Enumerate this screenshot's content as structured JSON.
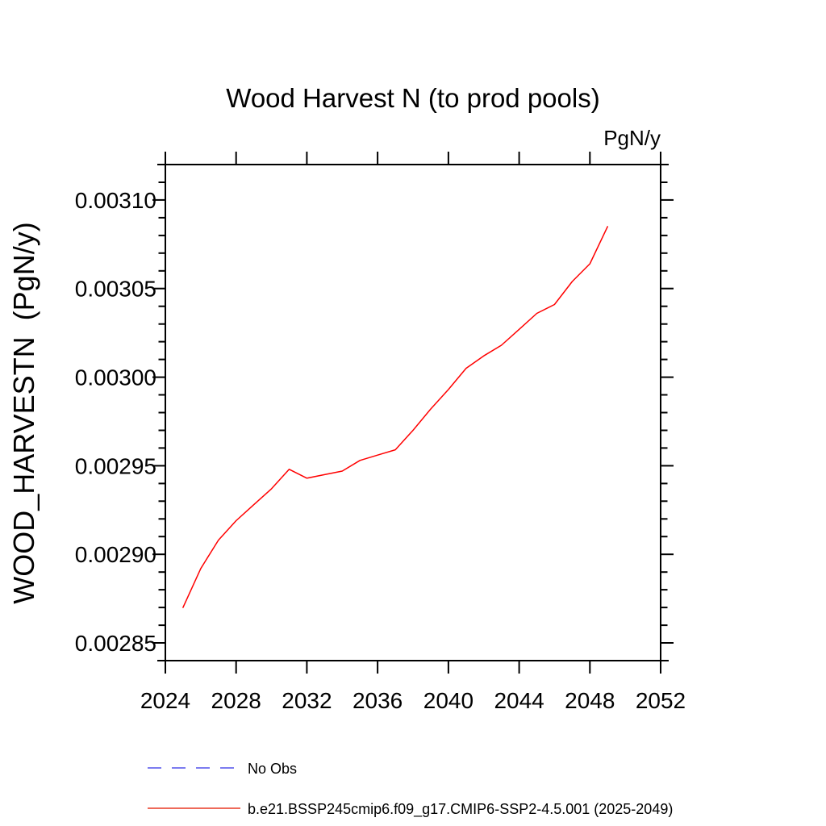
{
  "page": {
    "background": "#ffffff",
    "text_color": "#000000"
  },
  "chart_data": {
    "type": "line",
    "title": "Wood Harvest N (to prod pools)",
    "right_units_label": "PgN/y",
    "ylabel": "WOOD_HARVESTN  (PgN/y)",
    "xlabel": "",
    "grid": false,
    "legend_position": "bottom-left",
    "xlim": [
      2024,
      2052
    ],
    "ylim": [
      0.00284,
      0.00312
    ],
    "x_major_ticks": [
      2024,
      2028,
      2032,
      2036,
      2040,
      2044,
      2048,
      2052
    ],
    "y_major_ticks": [
      0.00285,
      0.0029,
      0.00295,
      0.003,
      0.00305,
      0.0031
    ],
    "y_minor_step": 1e-05,
    "y_tick_decimals": 5,
    "series": [
      {
        "name": "No Obs",
        "color": "#7c7cf0",
        "legend_color": "#7c7cf0",
        "style": "dashed",
        "x": [],
        "values": []
      },
      {
        "name": "b.e21.BSSP245cmip6.f09_g17.CMIP6-SSP2-4.5.001 (2025-2049)",
        "color": "#ff0000",
        "legend_color": "#ee6a5a",
        "style": "solid",
        "x": [
          2025,
          2026,
          2027,
          2028,
          2029,
          2030,
          2031,
          2032,
          2033,
          2034,
          2035,
          2036,
          2037,
          2038,
          2039,
          2040,
          2041,
          2042,
          2043,
          2044,
          2045,
          2046,
          2047,
          2048,
          2049
        ],
        "values": [
          0.00287,
          0.002892,
          0.002908,
          0.002919,
          0.002928,
          0.002937,
          0.002948,
          0.002943,
          0.002945,
          0.002947,
          0.002953,
          0.002956,
          0.002959,
          0.00297,
          0.002982,
          0.002993,
          0.003005,
          0.003012,
          0.003018,
          0.003027,
          0.003036,
          0.003041,
          0.003054,
          0.003064,
          0.003085
        ]
      }
    ]
  }
}
